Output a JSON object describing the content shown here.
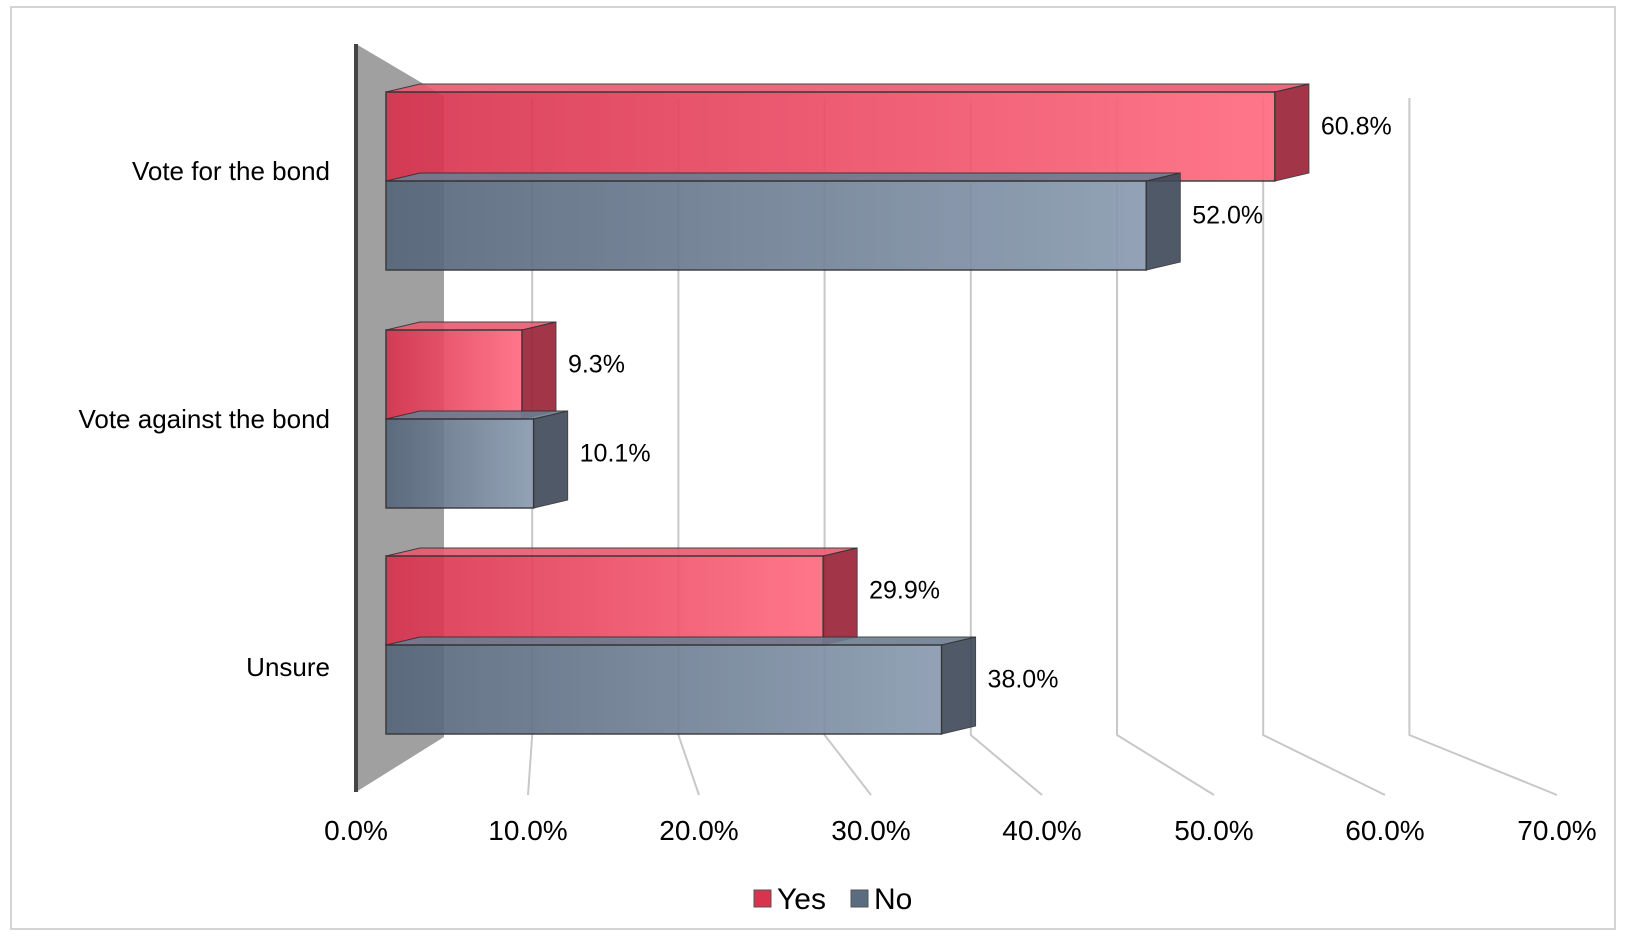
{
  "chart_data": {
    "type": "bar",
    "orientation": "horizontal",
    "style": "3d-clustered",
    "categories": [
      "Vote for the bond",
      "Vote against the bond",
      "Unsure"
    ],
    "series": [
      {
        "name": "Yes",
        "values": [
          60.8,
          9.3,
          29.9
        ],
        "labels": [
          "60.8%",
          "9.3%",
          "29.9%"
        ]
      },
      {
        "name": "No",
        "values": [
          52.0,
          10.1,
          38.0
        ],
        "labels": [
          "52.0%",
          "10.1%",
          "38.0%"
        ]
      }
    ],
    "x_ticks": [
      "0.0%",
      "10.0%",
      "20.0%",
      "30.0%",
      "40.0%",
      "50.0%",
      "60.0%",
      "70.0%"
    ],
    "xlim": [
      0,
      70
    ],
    "grid": true,
    "legend_position": "bottom",
    "colors": {
      "Yes": "#d8334f",
      "No": "#5b6b80",
      "wall": "#9b9b9b",
      "grid": "#c8c8c8"
    }
  }
}
